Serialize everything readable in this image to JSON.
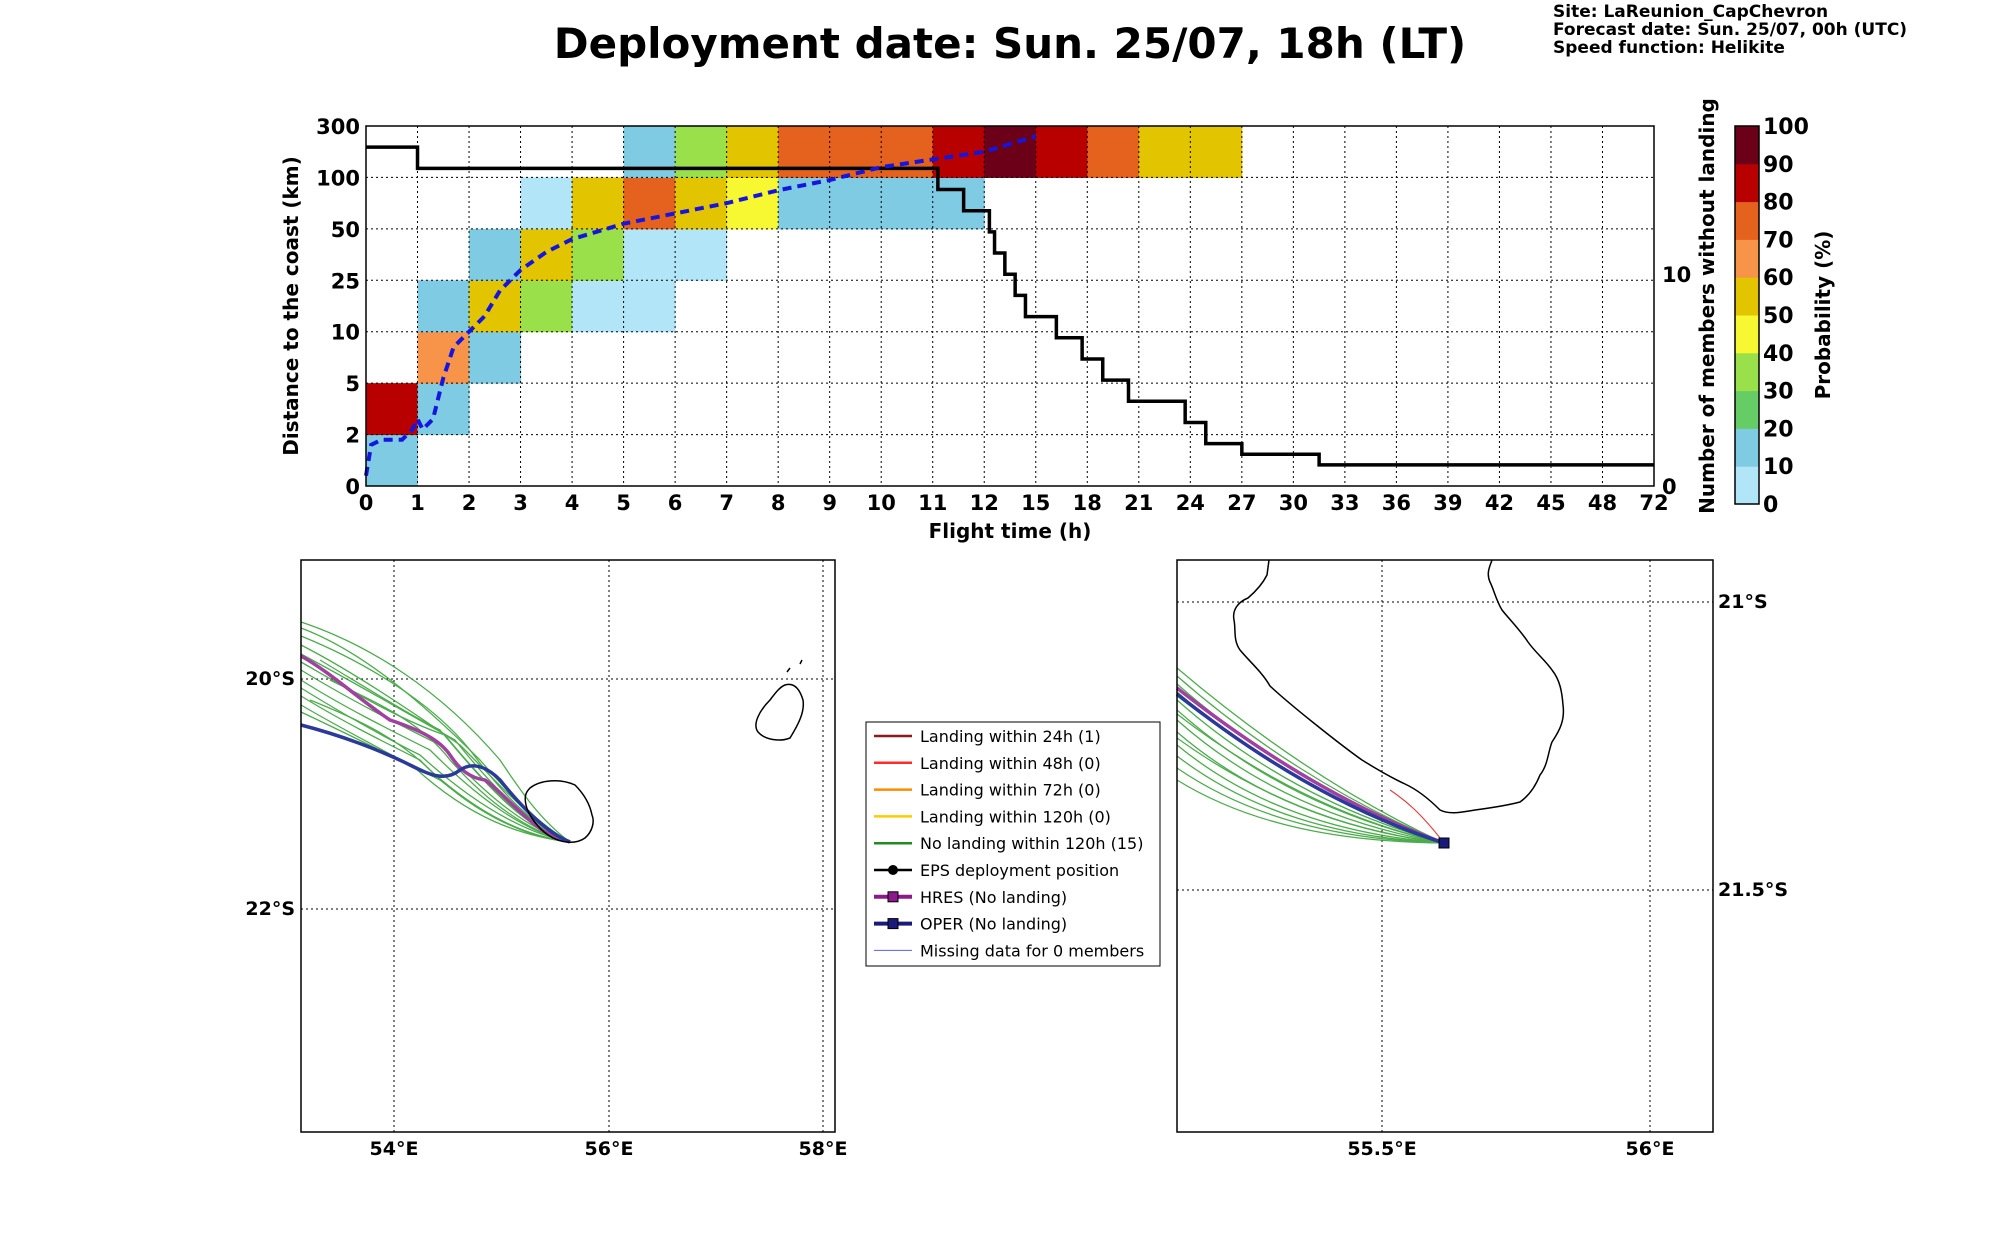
{
  "header": {
    "title": "Deployment date: Sun. 25/07, 18h (LT)",
    "site": "Site: LaReunion_CapChevron",
    "forecast": "Forecast date: Sun. 25/07, 00h (UTC)",
    "speed": "Speed function: Helikite"
  },
  "chart_data": [
    {
      "type": "heatmap",
      "xlabel": "Flight time (h)",
      "ylabel": "Distance to the coast (km)",
      "y2label": "Number of members without landing",
      "x_ticks": [
        "0",
        "1",
        "2",
        "3",
        "4",
        "5",
        "6",
        "7",
        "8",
        "9",
        "10",
        "11",
        "12",
        "15",
        "18",
        "21",
        "24",
        "27",
        "30",
        "33",
        "36",
        "39",
        "42",
        "45",
        "48",
        "72"
      ],
      "y_ticks": [
        "0",
        "2",
        "5",
        "10",
        "25",
        "50",
        "100",
        "300"
      ],
      "y2_ticks": [
        "0",
        "10"
      ],
      "y2_range": [
        0,
        17
      ],
      "grid": true,
      "colorbar": {
        "label": "Probability (%)",
        "ticks": [
          "0",
          "10",
          "20",
          "30",
          "40",
          "50",
          "60",
          "70",
          "80",
          "90",
          "100"
        ],
        "colors": [
          "#b3e5f8",
          "#7ecbe3",
          "#66cc66",
          "#99e04a",
          "#f7f732",
          "#e2c400",
          "#f7944a",
          "#e5621e",
          "#b80000",
          "#6b0018"
        ]
      },
      "cells": [
        {
          "x": 0,
          "y": 0,
          "p": 10
        },
        {
          "x": 0,
          "y": 1,
          "p": 85
        },
        {
          "x": 1,
          "y": 1,
          "p": 10
        },
        {
          "x": 1,
          "y": 2,
          "p": 65
        },
        {
          "x": 1,
          "y": 3,
          "p": 10
        },
        {
          "x": 2,
          "y": 2,
          "p": 10
        },
        {
          "x": 2,
          "y": 3,
          "p": 55
        },
        {
          "x": 2,
          "y": 4,
          "p": 10
        },
        {
          "x": 3,
          "y": 3,
          "p": 35
        },
        {
          "x": 3,
          "y": 4,
          "p": 55
        },
        {
          "x": 3,
          "y": 5,
          "p": 5
        },
        {
          "x": 4,
          "y": 3,
          "p": 5
        },
        {
          "x": 4,
          "y": 4,
          "p": 35
        },
        {
          "x": 4,
          "y": 5,
          "p": 55
        },
        {
          "x": 5,
          "y": 3,
          "p": 5
        },
        {
          "x": 5,
          "y": 4,
          "p": 5
        },
        {
          "x": 5,
          "y": 5,
          "p": 75
        },
        {
          "x": 5,
          "y": 6,
          "p": 10
        },
        {
          "x": 6,
          "y": 4,
          "p": 5
        },
        {
          "x": 6,
          "y": 5,
          "p": 55
        },
        {
          "x": 6,
          "y": 6,
          "p": 35
        },
        {
          "x": 7,
          "y": 5,
          "p": 45
        },
        {
          "x": 7,
          "y": 6,
          "p": 55
        },
        {
          "x": 8,
          "y": 5,
          "p": 10
        },
        {
          "x": 8,
          "y": 6,
          "p": 75
        },
        {
          "x": 9,
          "y": 5,
          "p": 10
        },
        {
          "x": 9,
          "y": 6,
          "p": 75
        },
        {
          "x": 10,
          "y": 5,
          "p": 10
        },
        {
          "x": 10,
          "y": 6,
          "p": 75
        },
        {
          "x": 11,
          "y": 5,
          "p": 10
        },
        {
          "x": 11,
          "y": 6,
          "p": 85
        },
        {
          "x": 12,
          "y": 6,
          "p": 95
        },
        {
          "x": 13,
          "y": 6,
          "p": 85
        },
        {
          "x": 14,
          "y": 6,
          "p": 75
        },
        {
          "x": 15,
          "y": 6,
          "p": 55
        },
        {
          "x": 16,
          "y": 6,
          "p": 55
        }
      ],
      "series": [
        {
          "name": "",
          "kind": "members_without_landing",
          "x": [
            0,
            0.9,
            1,
            11,
            11.1,
            11.5,
            11.6,
            12,
            12.1,
            12.2,
            12.4,
            12.6,
            12.8,
            13.4,
            13.9,
            14.3,
            14.8,
            15.9,
            16.3,
            17,
            17.5,
            18.5,
            20.5
          ],
          "y": [
            16,
            16,
            15,
            15,
            14,
            14,
            13,
            13,
            12,
            11,
            10,
            9,
            8,
            7,
            6,
            5,
            4,
            3,
            2,
            1.5,
            1.5,
            1,
            1
          ]
        },
        {
          "name": "",
          "kind": "mean_distance",
          "x": [
            0,
            0.1,
            0.3,
            0.5,
            0.7,
            0.9,
            1,
            1.1,
            1.3,
            1.5,
            1.7,
            2,
            2.3,
            2.6,
            3,
            3.5,
            4,
            4.5,
            5,
            6,
            7,
            8,
            9,
            10,
            11,
            12,
            12.5,
            13
          ],
          "y": [
            0.2,
            0.8,
            0.9,
            0.9,
            0.9,
            1.1,
            1.3,
            1.1,
            1.3,
            2.1,
            2.7,
            3,
            3.3,
            3.8,
            4.2,
            4.55,
            4.8,
            4.95,
            5.1,
            5.3,
            5.5,
            5.75,
            5.95,
            6.2,
            6.35,
            6.5,
            6.65,
            6.8
          ]
        }
      ]
    }
  ],
  "maps": {
    "left": {
      "lat_labels": [
        "20°S",
        "22°S"
      ],
      "lon_labels": [
        "54°E",
        "56°E",
        "58°E"
      ]
    },
    "right": {
      "lat_labels": [
        "21°S",
        "21.5°S"
      ],
      "lon_labels": [
        "55.5°E",
        "56°E"
      ]
    }
  },
  "legend": {
    "items": [
      {
        "label": "Landing within 24h (1)",
        "color": "#8b1a1a",
        "style": "line"
      },
      {
        "label": "Landing within 48h (0)",
        "color": "#ff2a2a",
        "style": "line"
      },
      {
        "label": "Landing within 72h (0)",
        "color": "#ff8c00",
        "style": "line"
      },
      {
        "label": "Landing within 120h (0)",
        "color": "#ffcc00",
        "style": "line"
      },
      {
        "label": "No landing within 120h (15)",
        "color": "#228b22",
        "style": "line"
      },
      {
        "label": "EPS deployment position",
        "color": "#000000",
        "style": "dot"
      },
      {
        "label": "HRES (No landing)",
        "color": "#8b1a8b",
        "style": "square"
      },
      {
        "label": "OPER (No landing)",
        "color": "#1a1a7a",
        "style": "square"
      },
      {
        "label": "Missing data for 0 members",
        "color": "#5a5aff",
        "style": "thin"
      }
    ]
  }
}
